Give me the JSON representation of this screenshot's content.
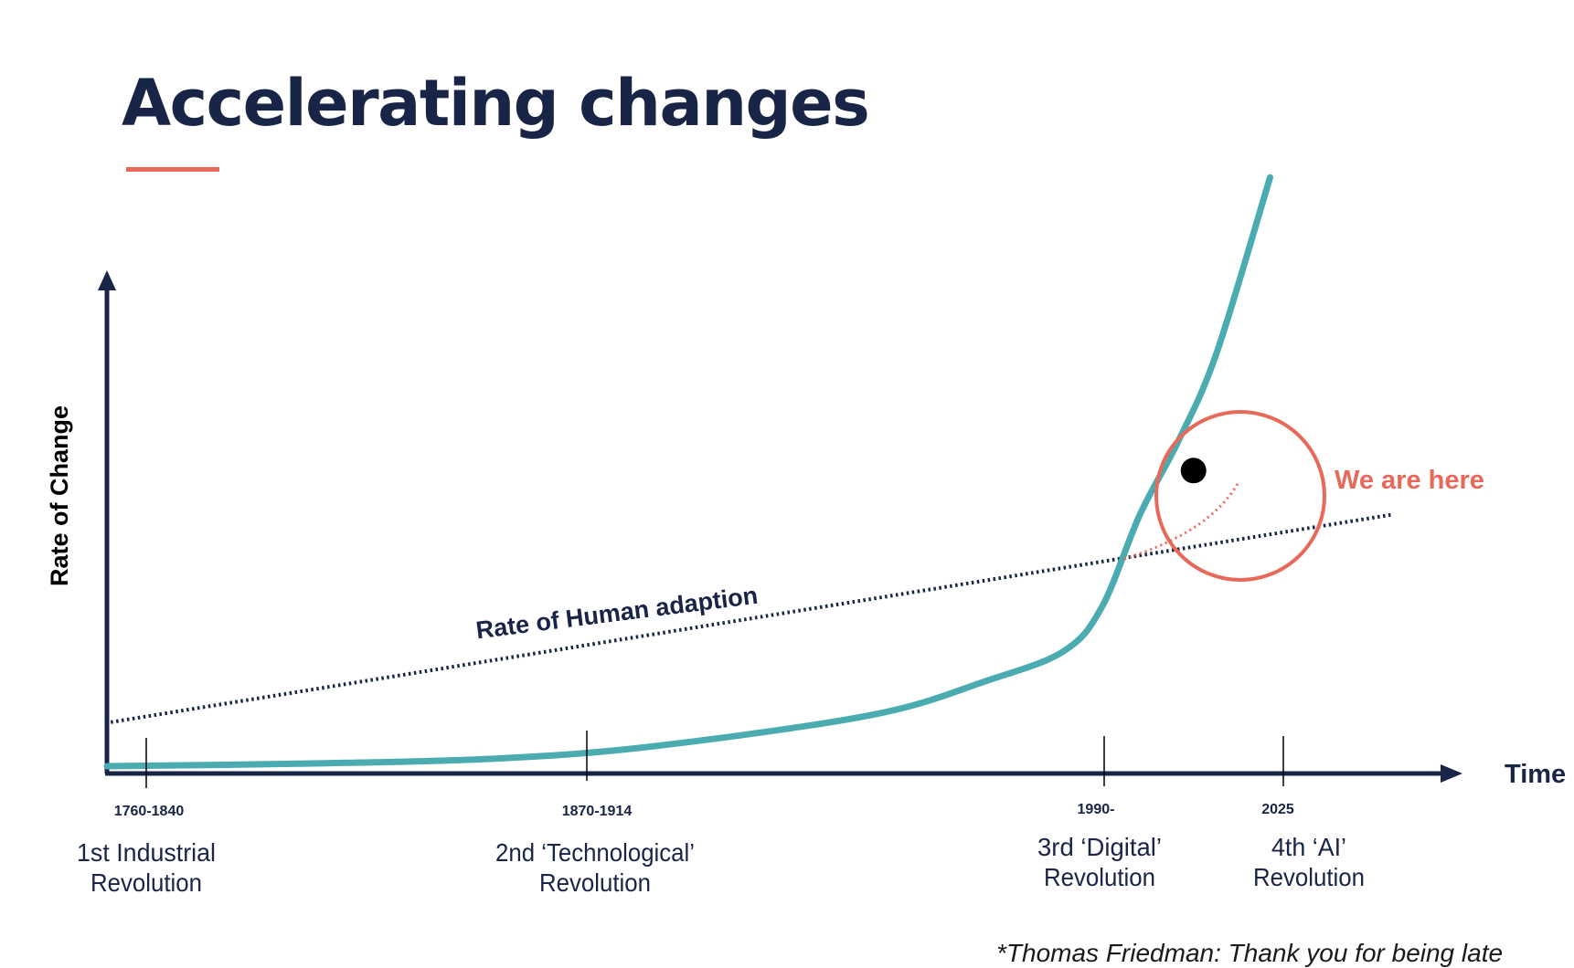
{
  "title": "Accelerating changes",
  "footnote": "*Thomas Friedman: Thank you for being late",
  "colors": {
    "navy": "#182547",
    "accent": "#e8695a",
    "curve": "#4aabb0",
    "marker": "#000000"
  },
  "chart_data": {
    "type": "line",
    "ylabel": "Rate of Change",
    "xlabel": "Time",
    "grid": false,
    "xlim": [
      1750,
      2100
    ],
    "ylim": [
      0,
      100
    ],
    "series": [
      {
        "name": "Rate of Change",
        "x": [
          1750,
          1800,
          1850,
          1892,
          1950,
          1980,
          2000,
          2010,
          2020,
          2030,
          2040,
          2054
        ],
        "y": [
          1.5,
          2.0,
          3.0,
          5.5,
          12.0,
          19.0,
          25.0,
          34.0,
          53.0,
          68.0,
          86.0,
          122.0
        ]
      },
      {
        "name": "Rate of Human adaption",
        "x": [
          1751,
          2086
        ],
        "y": [
          10.5,
          53.0
        ],
        "style": "dotted"
      }
    ],
    "ticks": [
      {
        "date": "1760-1840",
        "x": 1760,
        "era_line1": "1st Industrial",
        "era_line2": "Revolution"
      },
      {
        "date": "1870-1914",
        "x": 1870,
        "era_line1": "2nd ‘Technological’",
        "era_line2": "Revolution"
      },
      {
        "date": "1990-",
        "x": 2000,
        "era_line1": "3rd ‘Digital’",
        "era_line2": "Revolution"
      },
      {
        "date": "2025",
        "x": 2045,
        "era_line1": "4th ‘AI’",
        "era_line2": "Revolution"
      }
    ],
    "annotations": {
      "line_label": "Rate of Human adaption",
      "marker_label": "We are here",
      "marker": {
        "x": 2034,
        "y": 62
      }
    }
  }
}
